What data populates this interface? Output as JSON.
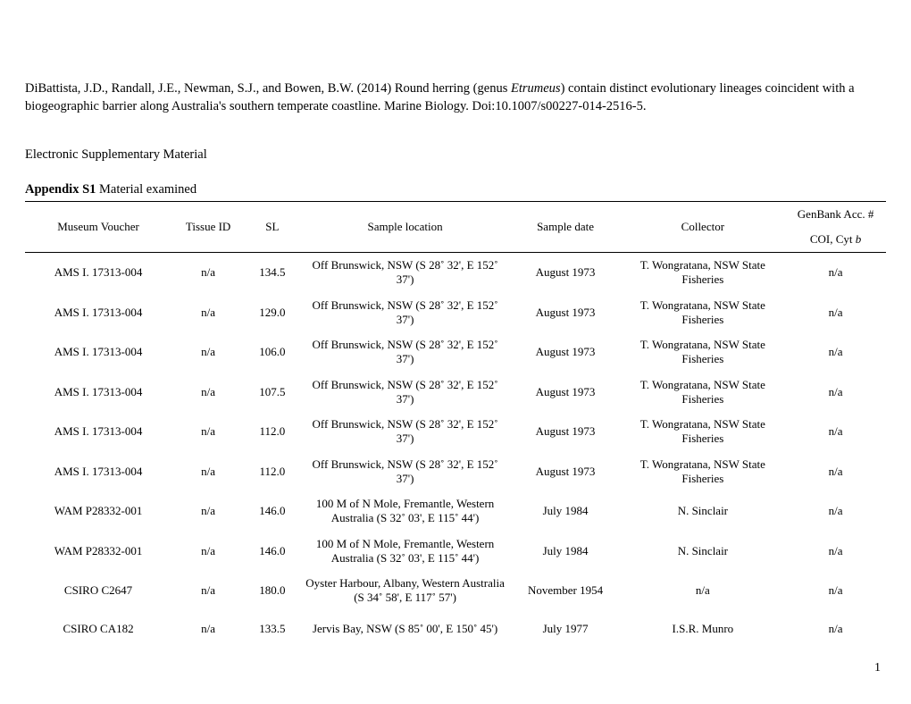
{
  "citation": {
    "prefix": "DiBattista, J.D., Randall, J.E., Newman, S.J., and Bowen, B.W. (2014) Round herring (genus ",
    "genus": "Etrumeus",
    "suffix": ") contain distinct evolutionary lineages coincident with a biogeographic barrier along Australia's southern temperate coastline. Marine Biology. Doi:10.1007/s00227-014-2516-5."
  },
  "esm_title": "Electronic Supplementary Material",
  "appendix": {
    "label": "Appendix S1",
    "text": " Material examined"
  },
  "table": {
    "headers": {
      "voucher": "Museum Voucher",
      "tissue": "Tissue ID",
      "sl": "SL",
      "location": "Sample location",
      "date": "Sample date",
      "collector": "Collector",
      "genbank_top": "GenBank Acc. #",
      "genbank_sub_prefix": "COI, Cyt ",
      "genbank_sub_italic": "b"
    },
    "rows": [
      {
        "voucher": "AMS I. 17313-004",
        "tissue": "n/a",
        "sl": "134.5",
        "location": "Off Brunswick, NSW (S 28˚ 32', E 152˚ 37')",
        "date": "August 1973",
        "collector": "T. Wongratana, NSW State Fisheries",
        "genbank": "n/a"
      },
      {
        "voucher": "AMS I. 17313-004",
        "tissue": "n/a",
        "sl": "129.0",
        "location": "Off Brunswick, NSW (S 28˚ 32', E 152˚ 37')",
        "date": "August 1973",
        "collector": "T. Wongratana, NSW State Fisheries",
        "genbank": "n/a"
      },
      {
        "voucher": "AMS I. 17313-004",
        "tissue": "n/a",
        "sl": "106.0",
        "location": "Off Brunswick, NSW (S 28˚ 32', E 152˚ 37')",
        "date": "August 1973",
        "collector": "T. Wongratana, NSW State Fisheries",
        "genbank": "n/a"
      },
      {
        "voucher": "AMS I. 17313-004",
        "tissue": "n/a",
        "sl": "107.5",
        "location": "Off Brunswick, NSW (S 28˚ 32', E 152˚ 37')",
        "date": "August 1973",
        "collector": "T. Wongratana, NSW State Fisheries",
        "genbank": "n/a"
      },
      {
        "voucher": "AMS I. 17313-004",
        "tissue": "n/a",
        "sl": "112.0",
        "location": "Off Brunswick, NSW (S 28˚ 32', E 152˚ 37')",
        "date": "August 1973",
        "collector": "T. Wongratana, NSW State Fisheries",
        "genbank": "n/a"
      },
      {
        "voucher": "AMS I. 17313-004",
        "tissue": "n/a",
        "sl": "112.0",
        "location": "Off Brunswick, NSW (S 28˚ 32', E 152˚ 37')",
        "date": "August 1973",
        "collector": "T. Wongratana, NSW State Fisheries",
        "genbank": "n/a"
      },
      {
        "voucher": "WAM P28332-001",
        "tissue": "n/a",
        "sl": "146.0",
        "location": "100 M of N Mole, Fremantle, Western Australia (S 32˚ 03', E 115˚ 44')",
        "date": "July 1984",
        "collector": "N. Sinclair",
        "genbank": "n/a"
      },
      {
        "voucher": "WAM P28332-001",
        "tissue": "n/a",
        "sl": "146.0",
        "location": "100 M of N Mole, Fremantle, Western Australia (S 32˚ 03', E 115˚ 44')",
        "date": "July 1984",
        "collector": "N. Sinclair",
        "genbank": "n/a"
      },
      {
        "voucher": "CSIRO C2647",
        "tissue": "n/a",
        "sl": "180.0",
        "location": "Oyster Harbour, Albany, Western Australia (S 34˚ 58', E 117˚ 57')",
        "date": "November 1954",
        "collector": "n/a",
        "genbank": "n/a"
      },
      {
        "voucher": "CSIRO CA182",
        "tissue": "n/a",
        "sl": "133.5",
        "location": "Jervis Bay, NSW (S 85˚ 00', E 150˚ 45')",
        "date": "July 1977",
        "collector": "I.S.R. Munro",
        "genbank": "n/a"
      }
    ]
  },
  "page_number": "1"
}
